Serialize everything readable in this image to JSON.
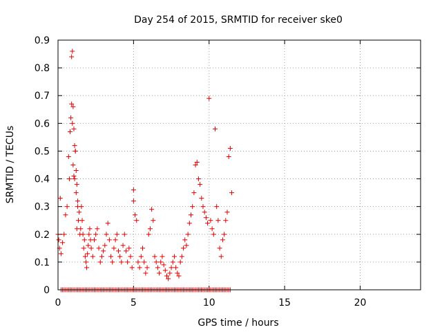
{
  "chart_data": {
    "type": "scatter",
    "title": "Day 254 of 2015, SRMTID for receiver ske0",
    "xlabel": "GPS time / hours",
    "ylabel": "SRMTID / TECUs",
    "xlim": [
      0,
      24
    ],
    "ylim": [
      0,
      0.9
    ],
    "xticks": [
      "0",
      "5",
      "10",
      "15",
      "20"
    ],
    "yticks": [
      "0",
      "0.1",
      "0.2",
      "0.3",
      "0.4",
      "0.5",
      "0.6",
      "0.7",
      "0.8",
      "0.9"
    ],
    "grid": true,
    "marker": "+",
    "color": "#e00000",
    "series": [
      {
        "name": "SRMTID",
        "x": [
          0.0,
          0.05,
          0.1,
          0.15,
          0.2,
          0.3,
          0.4,
          0.5,
          0.6,
          0.7,
          0.75,
          0.8,
          0.85,
          0.9,
          0.95,
          1.0,
          1.0,
          1.05,
          1.1,
          1.15,
          1.2,
          1.25,
          1.3,
          1.35,
          1.4,
          1.45,
          1.5,
          1.55,
          1.6,
          1.65,
          1.7,
          1.75,
          1.8,
          1.85,
          1.9,
          1.95,
          2.0,
          2.05,
          2.1,
          2.15,
          2.2,
          2.3,
          2.4,
          2.5,
          2.6,
          2.7,
          2.8,
          2.9,
          3.0,
          3.1,
          3.2,
          3.3,
          3.4,
          3.5,
          3.6,
          3.7,
          3.8,
          3.9,
          4.0,
          4.1,
          4.2,
          4.3,
          4.4,
          4.5,
          4.6,
          4.7,
          4.8,
          4.9,
          5.0,
          5.0,
          5.1,
          5.2,
          5.3,
          5.4,
          5.5,
          5.6,
          5.7,
          5.8,
          5.9,
          6.0,
          6.1,
          6.2,
          6.3,
          6.4,
          6.5,
          6.6,
          6.7,
          6.8,
          6.9,
          7.0,
          7.1,
          7.2,
          7.3,
          7.4,
          7.5,
          7.6,
          7.7,
          7.8,
          7.9,
          8.0,
          8.1,
          8.2,
          8.3,
          8.4,
          8.5,
          8.6,
          8.7,
          8.8,
          8.9,
          9.0,
          9.1,
          9.2,
          9.3,
          9.4,
          9.5,
          9.6,
          9.7,
          9.8,
          9.9,
          10.0,
          10.1,
          10.2,
          10.3,
          10.4,
          10.5,
          10.6,
          10.7,
          10.8,
          10.9,
          11.0,
          11.1,
          11.2,
          11.3,
          11.4,
          11.5,
          0.95,
          1.05,
          1.1,
          1.2,
          1.25,
          0.9,
          1.15,
          1.3,
          10.0,
          10.4,
          10.7,
          9.5,
          11.2,
          5.0,
          4.8
        ],
        "y": [
          0.2,
          0.18,
          0.15,
          0.33,
          0.13,
          0.17,
          0.2,
          0.27,
          0.3,
          0.48,
          0.4,
          0.57,
          0.62,
          0.84,
          0.86,
          0.66,
          0.45,
          0.41,
          0.4,
          0.5,
          0.35,
          0.22,
          0.3,
          0.25,
          0.28,
          0.2,
          0.22,
          0.3,
          0.25,
          0.2,
          0.15,
          0.18,
          0.12,
          0.1,
          0.08,
          0.13,
          0.16,
          0.2,
          0.22,
          0.18,
          0.15,
          0.12,
          0.18,
          0.2,
          0.22,
          0.15,
          0.1,
          0.12,
          0.14,
          0.16,
          0.2,
          0.24,
          0.18,
          0.12,
          0.1,
          0.15,
          0.18,
          0.2,
          0.14,
          0.12,
          0.1,
          0.16,
          0.2,
          0.14,
          0.1,
          0.15,
          0.12,
          0.08,
          0.36,
          0.32,
          0.27,
          0.25,
          0.1,
          0.08,
          0.12,
          0.15,
          0.1,
          0.06,
          0.08,
          0.2,
          0.22,
          0.29,
          0.25,
          0.12,
          0.1,
          0.08,
          0.06,
          0.1,
          0.12,
          0.09,
          0.07,
          0.05,
          0.04,
          0.06,
          0.08,
          0.1,
          0.12,
          0.08,
          0.06,
          0.05,
          0.1,
          0.12,
          0.15,
          0.18,
          0.16,
          0.2,
          0.24,
          0.27,
          0.3,
          0.35,
          0.45,
          0.46,
          0.4,
          0.38,
          0.33,
          0.3,
          0.28,
          0.26,
          0.24,
          0.69,
          0.25,
          0.22,
          0.2,
          0.58,
          0.3,
          0.25,
          0.15,
          0.12,
          0.18,
          0.2,
          0.25,
          0.28,
          0.48,
          0.51,
          0.35,
          0.6,
          0.58,
          0.52,
          0.43,
          0.38,
          0.67,
          0.5,
          0.32,
          0.0,
          0.0,
          0.0,
          0.0,
          0.0,
          0.0,
          0.0
        ]
      },
      {
        "name": "zero-values",
        "x_range": [
          0.2,
          11.4
        ],
        "step": 0.1,
        "y": 0
      }
    ]
  }
}
